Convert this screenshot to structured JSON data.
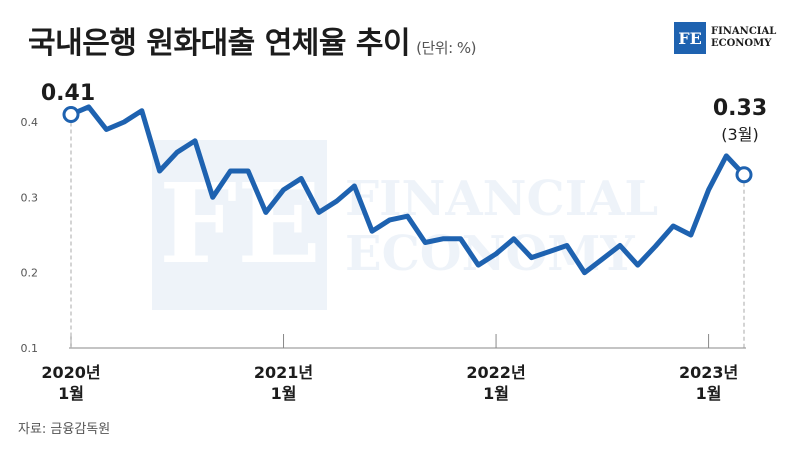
{
  "header": {
    "title": "국내은행 원화대출 연체율 추이",
    "unit": "(단위: %)"
  },
  "logo": {
    "mark": "FE",
    "line1": "FINANCIAL",
    "line2": "ECONOMY"
  },
  "source": "자료: 금융감독원",
  "colors": {
    "line": "#1e62b0",
    "axis": "#888888",
    "text": "#1c1c1c"
  },
  "chart_data": {
    "type": "line",
    "title": "국내은행 원화대출 연체율 추이",
    "ylim": [
      0.1,
      0.45
    ],
    "yticks": [
      "0.4",
      "0.3",
      "0.2",
      "0.1"
    ],
    "ytick_values": [
      0.4,
      0.3,
      0.2,
      0.1
    ],
    "grid": false,
    "xtick_labels": [
      {
        "line1": "2020년",
        "line2": "1월",
        "index": 0
      },
      {
        "line1": "2021년",
        "line2": "1월",
        "index": 12
      },
      {
        "line1": "2022년",
        "line2": "1월",
        "index": 24
      },
      {
        "line1": "2023년",
        "line2": "1월",
        "index": 36
      }
    ],
    "series": [
      {
        "values": [
          0.41,
          0.42,
          0.39,
          0.4,
          0.415,
          0.335,
          0.36,
          0.375,
          0.3,
          0.335,
          0.335,
          0.28,
          0.31,
          0.325,
          0.28,
          0.295,
          0.315,
          0.255,
          0.27,
          0.275,
          0.24,
          0.245,
          0.245,
          0.21,
          0.225,
          0.245,
          0.22,
          0.228,
          0.236,
          0.2,
          0.218,
          0.236,
          0.21,
          0.235,
          0.262,
          0.25,
          0.31,
          0.355,
          0.33
        ]
      }
    ],
    "annotations": {
      "first": {
        "value": "0.41",
        "index": 0
      },
      "last": {
        "value": "0.33",
        "note": "(3월)",
        "index": 38
      }
    }
  }
}
